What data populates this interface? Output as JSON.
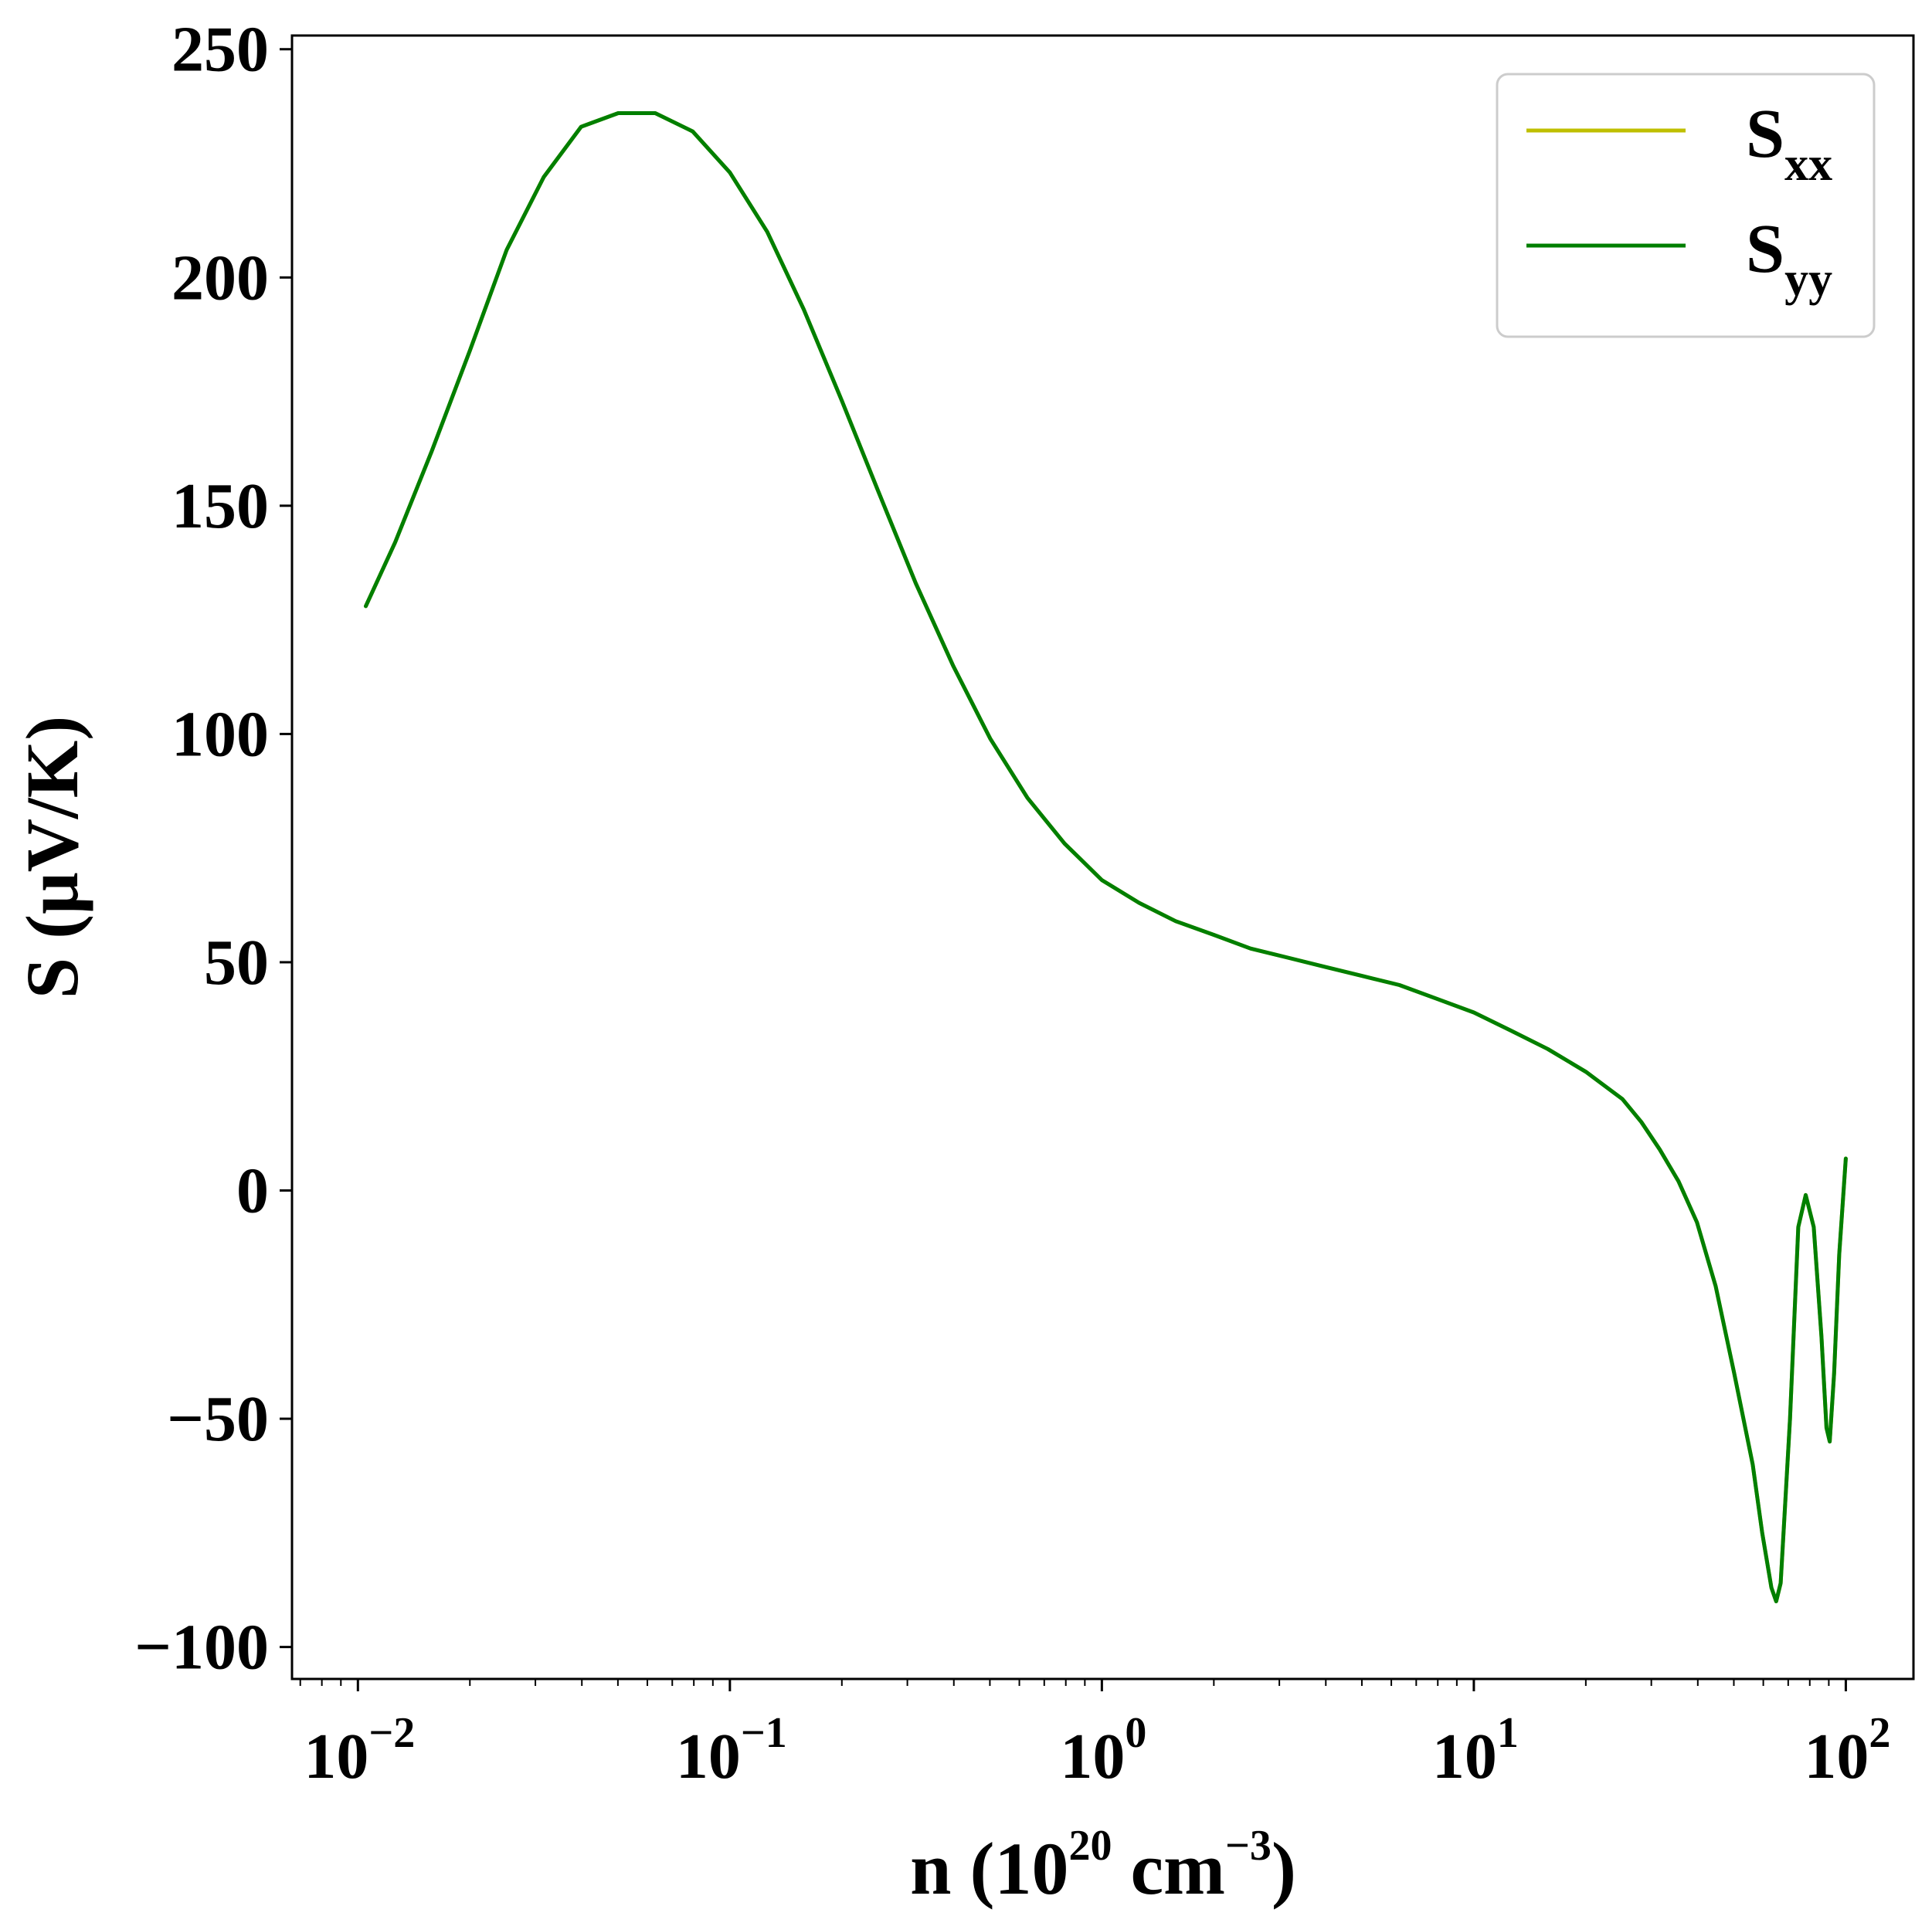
{
  "chart_data": {
    "type": "line",
    "x_scale": "log",
    "xlim": [
      0.00665,
      152
    ],
    "ylim": [
      -107,
      253
    ],
    "xlabel": {
      "base": "n (10",
      "exp1": "20",
      "mid": " cm",
      "exp2": "−3",
      "end": ")"
    },
    "ylabel": "S (μV/K)",
    "x_ticks": [
      {
        "value": 0.01,
        "base": "10",
        "exp": "−2"
      },
      {
        "value": 0.1,
        "base": "10",
        "exp": "−1"
      },
      {
        "value": 1,
        "base": "10",
        "exp": "0"
      },
      {
        "value": 10,
        "base": "10",
        "exp": "1"
      },
      {
        "value": 100,
        "base": "10",
        "exp": "2"
      }
    ],
    "y_ticks": [
      {
        "value": 250,
        "label": "250"
      },
      {
        "value": 200,
        "label": "200"
      },
      {
        "value": 150,
        "label": "150"
      },
      {
        "value": 100,
        "label": "100"
      },
      {
        "value": 50,
        "label": "50"
      },
      {
        "value": 0,
        "label": "0"
      },
      {
        "value": -50,
        "label": "−50"
      },
      {
        "value": -100,
        "label": "−100"
      }
    ],
    "legend_position": "top-right",
    "series": [
      {
        "name": "S",
        "sub": "xx",
        "color": "#bfbf00",
        "x": [
          0.0105,
          0.0126,
          0.0158,
          0.02,
          0.0251,
          0.0316,
          0.0398,
          0.0501,
          0.063,
          0.0794,
          0.1,
          0.126,
          0.158,
          0.2,
          0.251,
          0.316,
          0.398,
          0.501,
          0.631,
          0.794,
          1.0,
          1.26,
          1.58,
          2.0,
          2.51,
          3.16,
          3.98,
          5.01,
          6.31,
          7.94,
          10.0,
          12.6,
          15.8,
          20.0,
          25.1,
          28.2,
          31.6,
          35.5,
          39.8,
          44.7,
          50.1,
          56.2,
          59.6,
          63.1,
          65.0,
          66.8,
          70.8,
          74.5,
          78.0,
          82.0,
          86.0,
          88.7,
          90.5,
          93.0,
          96.0,
          100.0
        ],
        "y": [
          128,
          142,
          162,
          184,
          206,
          222,
          233,
          236,
          236,
          232,
          223,
          210,
          193,
          173,
          153,
          133,
          115,
          99,
          86,
          76,
          68,
          63,
          59,
          56,
          53,
          51,
          49,
          47,
          45,
          42,
          39,
          35,
          31,
          26,
          20,
          15,
          9,
          2,
          -7,
          -21,
          -40,
          -60,
          -75,
          -87,
          -90,
          -86,
          -50,
          -8,
          -1,
          -8,
          -32,
          -52,
          -55,
          -40,
          -14,
          7
        ]
      },
      {
        "name": "S",
        "sub": "yy",
        "color": "#007f00",
        "x": [
          0.0105,
          0.0126,
          0.0158,
          0.02,
          0.0251,
          0.0316,
          0.0398,
          0.0501,
          0.063,
          0.0794,
          0.1,
          0.126,
          0.158,
          0.2,
          0.251,
          0.316,
          0.398,
          0.501,
          0.631,
          0.794,
          1.0,
          1.26,
          1.58,
          2.0,
          2.51,
          3.16,
          3.98,
          5.01,
          6.31,
          7.94,
          10.0,
          12.6,
          15.8,
          20.0,
          25.1,
          28.2,
          31.6,
          35.5,
          39.8,
          44.7,
          50.1,
          56.2,
          59.6,
          63.1,
          65.0,
          66.8,
          70.8,
          74.5,
          78.0,
          82.0,
          86.0,
          88.7,
          90.5,
          93.0,
          96.0,
          100.0
        ],
        "y": [
          128,
          142,
          162,
          184,
          206,
          222,
          233,
          236,
          236,
          232,
          223,
          210,
          193,
          173,
          153,
          133,
          115,
          99,
          86,
          76,
          68,
          63,
          59,
          56,
          53,
          51,
          49,
          47,
          45,
          42,
          39,
          35,
          31,
          26,
          20,
          15,
          9,
          2,
          -7,
          -21,
          -40,
          -60,
          -75,
          -87,
          -90,
          -86,
          -50,
          -8,
          -1,
          -8,
          -32,
          -52,
          -55,
          -40,
          -14,
          7
        ]
      }
    ]
  }
}
